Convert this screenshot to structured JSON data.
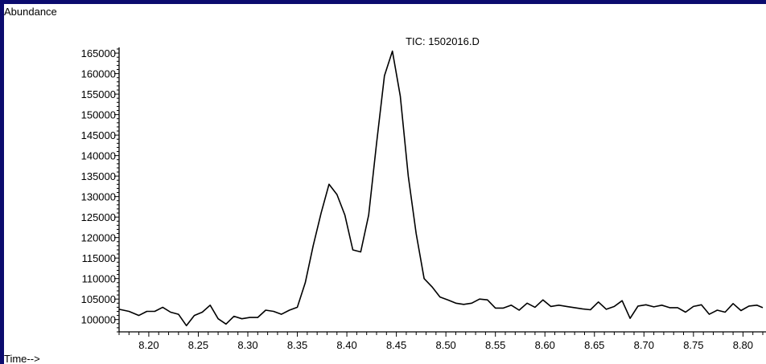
{
  "chart_data": {
    "type": "line",
    "title": "TIC: 1502016.D",
    "ylabel": "Abundance",
    "xlabel": "Time-->",
    "xlim": [
      8.17,
      8.82
    ],
    "ylim": [
      97000,
      166000
    ],
    "x_ticks": [
      "8.20",
      "8.25",
      "8.30",
      "8.35",
      "8.40",
      "8.45",
      "8.50",
      "8.55",
      "8.60",
      "8.65",
      "8.70",
      "8.75",
      "8.80"
    ],
    "y_ticks": [
      "100000",
      "105000",
      "110000",
      "115000",
      "120000",
      "125000",
      "130000",
      "135000",
      "140000",
      "145000",
      "150000",
      "155000",
      "160000",
      "165000"
    ],
    "grid": false,
    "series": [
      {
        "color": "#000000",
        "x": [
          8.17,
          8.18,
          8.19,
          8.198,
          8.206,
          8.214,
          8.222,
          8.23,
          8.238,
          8.246,
          8.254,
          8.262,
          8.27,
          8.278,
          8.286,
          8.294,
          8.302,
          8.31,
          8.318,
          8.326,
          8.334,
          8.342,
          8.35,
          8.358,
          8.366,
          8.374,
          8.382,
          8.39,
          8.398,
          8.406,
          8.414,
          8.422,
          8.43,
          8.438,
          8.446,
          8.454,
          8.462,
          8.47,
          8.478,
          8.486,
          8.494,
          8.502,
          8.51,
          8.518,
          8.526,
          8.534,
          8.542,
          8.55,
          8.558,
          8.566,
          8.574,
          8.582,
          8.59,
          8.598,
          8.606,
          8.614,
          8.622,
          8.63,
          8.638,
          8.646,
          8.654,
          8.662,
          8.67,
          8.678,
          8.686,
          8.694,
          8.702,
          8.71,
          8.718,
          8.726,
          8.734,
          8.742,
          8.75,
          8.758,
          8.766,
          8.774,
          8.782,
          8.79,
          8.798,
          8.806,
          8.814,
          8.82
        ],
        "y": [
          102500,
          102000,
          101000,
          102000,
          102000,
          103000,
          101800,
          101300,
          98500,
          101000,
          101800,
          103500,
          100200,
          98900,
          100800,
          100200,
          100500,
          100500,
          102300,
          102000,
          101300,
          102300,
          103000,
          109000,
          118000,
          126000,
          133000,
          130500,
          125500,
          117000,
          116500,
          125500,
          143000,
          159500,
          165500,
          154500,
          135000,
          121000,
          110000,
          108000,
          105500,
          104800,
          104000,
          103700,
          104000,
          105000,
          104800,
          102800,
          102800,
          103500,
          102300,
          104000,
          103000,
          104800,
          103200,
          103500,
          103200,
          102900,
          102600,
          102400,
          104300,
          102500,
          103200,
          104600,
          100300,
          103300,
          103600,
          103100,
          103500,
          102900,
          102900,
          101800,
          103200,
          103600,
          101300,
          102300,
          101800,
          103900,
          102200,
          103300,
          103500,
          102900
        ]
      }
    ]
  }
}
